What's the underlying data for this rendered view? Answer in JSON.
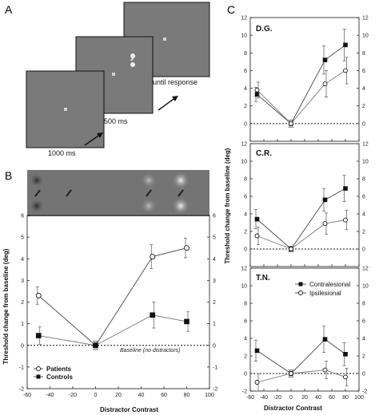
{
  "panels": {
    "a_label": "A",
    "b_label": "B",
    "c_label": "C"
  },
  "panel_a": {
    "time_labels": [
      "1000 ms",
      "500 ms",
      "until response"
    ],
    "screen_color": "#7a7a7a"
  },
  "panel_b": {
    "ylabel": "Threshold change from baseline (deg)",
    "xlabel": "Distractor Contrast",
    "baseline_note": "Baseline (no distractors)",
    "legend": [
      "Patients",
      "Controls"
    ]
  },
  "panel_c": {
    "ylabel": "Threshold change from baseline (deg)",
    "xlabel": "Distractor Contrast",
    "legend": [
      "Contralesional",
      "Ipsilesional"
    ]
  },
  "chart_data": [
    {
      "type": "line",
      "panel": "B",
      "title": "",
      "xlabel": "Distractor Contrast",
      "ylabel": "Threshold change from baseline (deg)",
      "x": [
        -50,
        0,
        50,
        80
      ],
      "xlim": [
        -60,
        100
      ],
      "xticks": [
        -60,
        -40,
        -20,
        0,
        20,
        40,
        60,
        80,
        100
      ],
      "ylim": [
        -2,
        6
      ],
      "yticks": [
        -2,
        -1,
        0,
        1,
        2,
        3,
        4,
        5,
        6
      ],
      "baseline": 0,
      "annotation": "Baseline (no distractors)",
      "legend_position": "bottom-left",
      "series": [
        {
          "name": "Patients",
          "marker": "open-circle",
          "values": [
            2.3,
            0.0,
            4.1,
            4.5
          ],
          "errors": [
            0.4,
            0.2,
            0.55,
            0.45
          ]
        },
        {
          "name": "Controls",
          "marker": "filled-square",
          "values": [
            0.45,
            0.0,
            1.4,
            1.1
          ],
          "errors": [
            0.4,
            0.2,
            0.6,
            0.45
          ]
        }
      ]
    },
    {
      "type": "line",
      "panel": "C",
      "subject": "D.G.",
      "xlabel": "",
      "x": [
        -50,
        0,
        50,
        80
      ],
      "xlim": [
        -60,
        100
      ],
      "ylim": [
        -2,
        12
      ],
      "yticks": [
        0,
        2,
        4,
        6,
        8,
        10,
        12
      ],
      "baseline": 0,
      "series": [
        {
          "name": "Contralesional",
          "marker": "filled-square",
          "values": [
            3.3,
            0.0,
            7.2,
            8.9
          ],
          "errors": [
            0.8,
            0.4,
            1.6,
            1.8
          ]
        },
        {
          "name": "Ipsilesional",
          "marker": "open-circle",
          "values": [
            3.8,
            0.0,
            4.5,
            6.0
          ],
          "errors": [
            0.9,
            0.4,
            1.5,
            1.5
          ]
        }
      ]
    },
    {
      "type": "line",
      "panel": "C",
      "subject": "C.R.",
      "xlabel": "",
      "x": [
        -50,
        0,
        50,
        80
      ],
      "xlim": [
        -60,
        100
      ],
      "ylim": [
        -2,
        12
      ],
      "yticks": [
        0,
        2,
        4,
        6,
        8,
        10,
        12
      ],
      "baseline": 0,
      "series": [
        {
          "name": "Contralesional",
          "marker": "filled-square",
          "values": [
            3.4,
            0.0,
            5.6,
            6.9
          ],
          "errors": [
            1.1,
            0.3,
            1.3,
            1.5
          ]
        },
        {
          "name": "Ipsilesional",
          "marker": "open-circle",
          "values": [
            1.5,
            0.0,
            2.9,
            3.3
          ],
          "errors": [
            1.0,
            0.3,
            1.2,
            1.1
          ]
        }
      ]
    },
    {
      "type": "line",
      "panel": "C",
      "subject": "T.N.",
      "xlabel": "Distractor Contrast",
      "x": [
        -50,
        0,
        50,
        80
      ],
      "xlim": [
        -60,
        100
      ],
      "xticks": [
        -60,
        -40,
        -20,
        0,
        20,
        40,
        60,
        80,
        100
      ],
      "ylim": [
        -2,
        12
      ],
      "yticks": [
        -2,
        0,
        2,
        4,
        6,
        8,
        10,
        12
      ],
      "baseline": 0,
      "legend_position": "top-right",
      "series": [
        {
          "name": "Contralesional",
          "marker": "filled-square",
          "values": [
            2.6,
            0.0,
            3.9,
            2.2
          ],
          "errors": [
            1.2,
            0.4,
            1.5,
            1.3
          ]
        },
        {
          "name": "Ipsilesional",
          "marker": "open-circle",
          "values": [
            -1.0,
            0.0,
            0.4,
            -0.4
          ],
          "errors": [
            1.0,
            0.4,
            1.0,
            1.0
          ]
        }
      ]
    }
  ]
}
